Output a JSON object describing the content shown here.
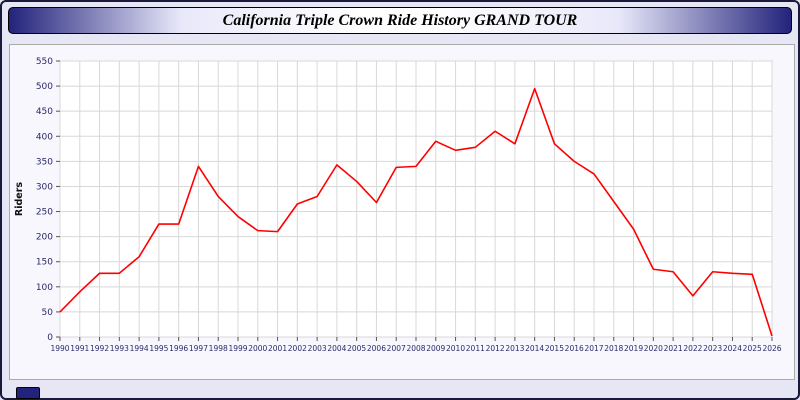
{
  "header": {
    "title": "California Triple Crown Ride History GRAND TOUR"
  },
  "chart_data": {
    "type": "line",
    "title": "California Triple Crown Ride History GRAND TOUR",
    "xlabel": "",
    "ylabel": "Riders",
    "ylim": [
      0,
      550
    ],
    "ytick_step": 50,
    "grid": true,
    "legend_position": "none",
    "line_color": "#ff0000",
    "plot_background": "#ffffff",
    "panel_background": "#f7f7fd",
    "grid_color": "#d8d8d8",
    "label_color": "#2a2a6a",
    "categories": [
      "1990",
      "1991",
      "1992",
      "1993",
      "1994",
      "1995",
      "1996",
      "1997",
      "1998",
      "1999",
      "2000",
      "2001",
      "2002",
      "2003",
      "2004",
      "2005",
      "2006",
      "2007",
      "2008",
      "2009",
      "2010",
      "2011",
      "2012",
      "2013",
      "2014",
      "2015",
      "2016",
      "2017",
      "2018",
      "2019",
      "2020",
      "2021",
      "2022",
      "2023",
      "2024",
      "2025",
      "2026"
    ],
    "series": [
      {
        "name": "Riders",
        "values": [
          50,
          90,
          127,
          127,
          160,
          225,
          225,
          340,
          280,
          240,
          212,
          210,
          265,
          280,
          343,
          310,
          268,
          338,
          340,
          390,
          372,
          378,
          410,
          385,
          495,
          385,
          350,
          325,
          270,
          215,
          135,
          130,
          82,
          130,
          127,
          125,
          2
        ]
      }
    ]
  },
  "footer": {
    "marker": ""
  }
}
